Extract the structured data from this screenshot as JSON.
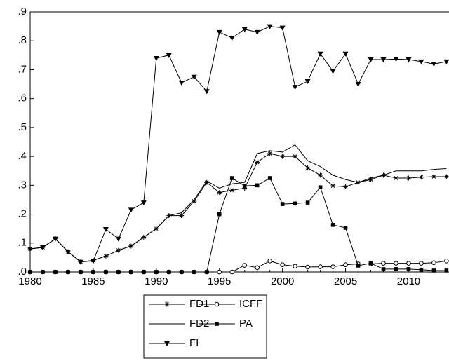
{
  "chart_data": {
    "type": "line",
    "x": [
      1980,
      1981,
      1982,
      1983,
      1984,
      1985,
      1986,
      1987,
      1988,
      1989,
      1990,
      1991,
      1992,
      1993,
      1994,
      1995,
      1996,
      1997,
      1998,
      1999,
      2000,
      2001,
      2002,
      2003,
      2004,
      2005,
      2006,
      2007,
      2008,
      2009,
      2010,
      2011,
      2012,
      2013
    ],
    "xlim": [
      1980,
      2013.2
    ],
    "xticks": [
      1980,
      1985,
      1990,
      1995,
      2000,
      2005,
      2010
    ],
    "ylim": [
      0,
      0.9
    ],
    "yticks": [
      {
        "value": 0,
        "label": ".0"
      },
      {
        "value": 0.1,
        "label": ".1"
      },
      {
        "value": 0.2,
        "label": ".2"
      },
      {
        "value": 0.3,
        "label": ".3"
      },
      {
        "value": 0.4,
        "label": ".4"
      },
      {
        "value": 0.5,
        "label": ".5"
      },
      {
        "value": 0.6,
        "label": ".6"
      },
      {
        "value": 0.7,
        "label": ".7"
      },
      {
        "value": 0.8,
        "label": ".8"
      },
      {
        "value": 0.9,
        "label": ".9"
      }
    ],
    "series": [
      {
        "name": "FD1",
        "color": "#000000",
        "marker": "star",
        "values": [
          0.08,
          0.085,
          0.115,
          0.07,
          0.035,
          0.04,
          0.055,
          0.075,
          0.09,
          0.12,
          0.15,
          0.195,
          0.195,
          0.245,
          0.31,
          0.275,
          0.283,
          0.29,
          0.38,
          0.41,
          0.4,
          0.4,
          0.36,
          0.335,
          0.298,
          0.295,
          0.31,
          0.32,
          0.335,
          0.325,
          0.325,
          0.328,
          0.33,
          0.33
        ]
      },
      {
        "name": "ICFF",
        "color": "#000000",
        "marker": "circle",
        "values": [
          0,
          0,
          0,
          0,
          0,
          0,
          0,
          0,
          0,
          0,
          0,
          0,
          0,
          0,
          0,
          0,
          0,
          0.023,
          0.015,
          0.038,
          0.025,
          0.02,
          0.017,
          0.018,
          0.018,
          0.025,
          0.028,
          0.028,
          0.03,
          0.03,
          0.03,
          0.03,
          0.032,
          0.038
        ]
      },
      {
        "name": "FD2",
        "color": "#000000",
        "marker": "none",
        "values": [
          0.08,
          0.085,
          0.115,
          0.07,
          0.035,
          0.04,
          0.055,
          0.075,
          0.09,
          0.12,
          0.15,
          0.195,
          0.205,
          0.25,
          0.315,
          0.29,
          0.305,
          0.31,
          0.41,
          0.42,
          0.415,
          0.44,
          0.385,
          0.365,
          0.335,
          0.32,
          0.31,
          0.325,
          0.335,
          0.35,
          0.35,
          0.35,
          0.355,
          0.358
        ]
      },
      {
        "name": "PA",
        "color": "#000000",
        "marker": "square",
        "values": [
          0,
          0,
          0,
          0,
          0,
          0,
          0,
          0,
          0,
          0,
          0,
          0,
          0,
          0,
          0,
          0.2,
          0.325,
          0.298,
          0.3,
          0.325,
          0.235,
          0.237,
          0.24,
          0.293,
          0.163,
          0.153,
          0.022,
          0.03,
          0.01,
          0.01,
          0.01,
          0.008,
          0.005,
          0.005
        ]
      },
      {
        "name": "FI",
        "color": "#000000",
        "marker": "triangle",
        "values": [
          0.08,
          0.085,
          0.115,
          0.07,
          0.035,
          0.038,
          0.148,
          0.115,
          0.215,
          0.24,
          0.74,
          0.75,
          0.655,
          0.675,
          0.625,
          0.83,
          0.81,
          0.84,
          0.83,
          0.85,
          0.845,
          0.64,
          0.66,
          0.755,
          0.695,
          0.755,
          0.65,
          0.735,
          0.735,
          0.737,
          0.735,
          0.728,
          0.72,
          0.728
        ]
      }
    ]
  }
}
